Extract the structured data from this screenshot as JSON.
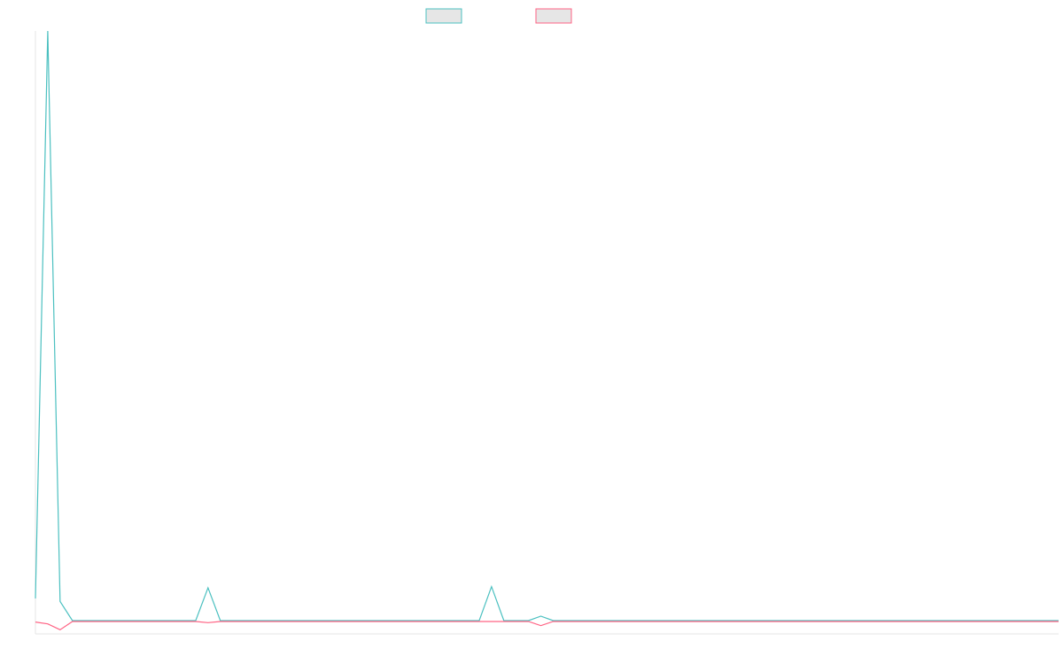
{
  "chart_data": {
    "type": "line",
    "title": "",
    "xlabel": "",
    "ylabel": "",
    "grid": false,
    "legend_position": "top-center",
    "x": [
      0,
      1,
      2,
      3,
      4,
      5,
      6,
      7,
      8,
      9,
      10,
      11,
      12,
      13,
      14,
      15,
      16,
      17,
      18,
      19,
      20,
      21,
      22,
      23,
      24,
      25,
      26,
      27,
      28,
      29,
      30,
      31,
      32,
      33,
      34,
      35,
      36,
      37,
      38,
      39,
      40,
      41,
      42,
      43,
      44,
      45,
      46,
      47,
      48,
      49,
      50,
      51,
      52,
      53,
      54,
      55,
      56,
      57,
      58,
      59,
      60,
      61,
      62,
      63,
      64,
      65,
      66,
      67,
      68,
      69,
      70,
      71,
      72,
      73,
      74,
      75,
      76,
      77,
      78,
      79,
      80,
      81,
      82,
      83
    ],
    "ylim": [
      -2,
      100
    ],
    "series": [
      {
        "color": "#4bc0c0",
        "fill": "#e6e6e6",
        "values": [
          4,
          100,
          3.5,
          0.25,
          0.25,
          0.25,
          0.25,
          0.25,
          0.25,
          0.25,
          0.25,
          0.25,
          0.25,
          0.25,
          5.8,
          0.25,
          0.25,
          0.25,
          0.25,
          0.25,
          0.25,
          0.25,
          0.25,
          0.25,
          0.25,
          0.25,
          0.25,
          0.25,
          0.25,
          0.25,
          0.25,
          0.25,
          0.25,
          0.25,
          0.25,
          0.25,
          0.25,
          6,
          0.25,
          0.25,
          0.25,
          1,
          0.25,
          0.25,
          0.25,
          0.25,
          0.25,
          0.25,
          0.25,
          0.25,
          0.25,
          0.25,
          0.25,
          0.25,
          0.25,
          0.25,
          0.25,
          0.25,
          0.25,
          0.25,
          0.25,
          0.25,
          0.25,
          0.25,
          0.25,
          0.25,
          0.25,
          0.25,
          0.25,
          0.25,
          0.25,
          0.25,
          0.25,
          0.25,
          0.25,
          0.25,
          0.25,
          0.25,
          0.25,
          0.25,
          0.25,
          0.25,
          0.25,
          0.25
        ]
      },
      {
        "color": "#ff6384",
        "fill": "#e6e6e6",
        "values": [
          0,
          -0.3,
          -1.3,
          0.1,
          0.1,
          0.1,
          0.1,
          0.1,
          0.1,
          0.1,
          0.1,
          0.1,
          0.1,
          0.1,
          -0.1,
          0.1,
          0.1,
          0.1,
          0.1,
          0.1,
          0.1,
          0.1,
          0.1,
          0.1,
          0.1,
          0.1,
          0.1,
          0.1,
          0.1,
          0.1,
          0.1,
          0.1,
          0.1,
          0.1,
          0.1,
          0.1,
          0.1,
          0.1,
          0.1,
          0.1,
          0.1,
          -0.6,
          0.1,
          0.1,
          0.1,
          0.1,
          0.1,
          0.1,
          0.1,
          0.1,
          0.1,
          0.1,
          0.1,
          0.1,
          0.1,
          0.1,
          0.1,
          0.1,
          0.1,
          0.1,
          0.1,
          0.1,
          0.1,
          0.1,
          0.1,
          0.1,
          0.1,
          0.1,
          0.1,
          0.1,
          0.1,
          0.1,
          0.1,
          0.1,
          0.1,
          0.1,
          0.1,
          0.1,
          0.1,
          0.1,
          0.1,
          0.1,
          0.1,
          0.1
        ]
      }
    ]
  }
}
